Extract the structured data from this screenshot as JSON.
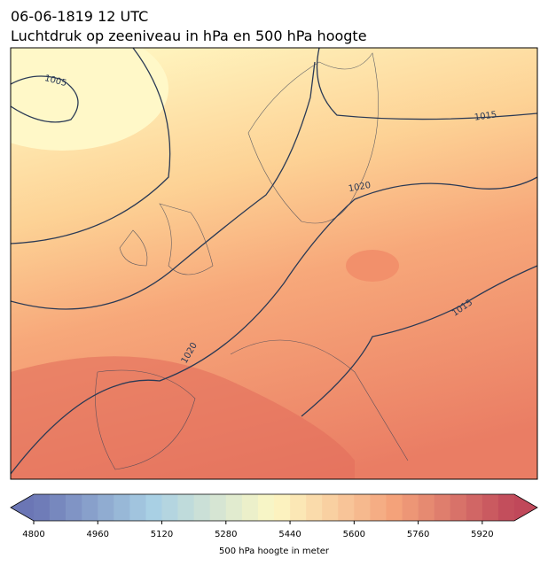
{
  "header": {
    "title_line1": "06-06-1819 12 UTC",
    "title_line2": "Luchtdruk op zeeniveau in hPa en 500 hPa hoogte"
  },
  "map": {
    "contour_labels": [
      "1005",
      "1015",
      "1020",
      "1020",
      "1015"
    ]
  },
  "colorbar": {
    "label": "500 hPa hoogte in meter",
    "lim": [
      4800,
      6000
    ],
    "level_step": 40,
    "ticks": [
      4800,
      4960,
      5120,
      5280,
      5440,
      5600,
      5760,
      5920
    ],
    "colormap": [
      "#6b76b5",
      "#a9d0e4",
      "#fdf8c4",
      "#f4a27a",
      "#c0485a"
    ]
  }
}
